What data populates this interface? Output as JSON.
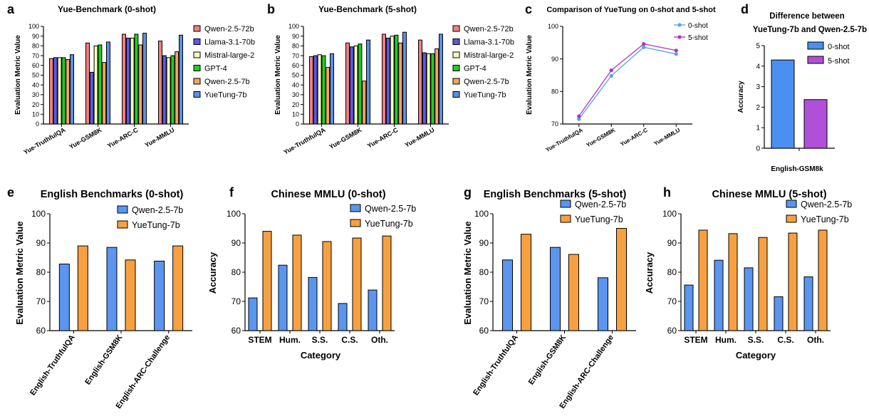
{
  "chart_data": [
    {
      "id": "a",
      "type": "bar",
      "panel_label": "a",
      "title": "Yue-Benchmark (0-shot)",
      "ylabel": "Evaluation Metric Value",
      "xlabel": "",
      "ylim": [
        0,
        100
      ],
      "yticks": [
        0,
        10,
        20,
        30,
        40,
        50,
        60,
        70,
        80,
        90,
        100
      ],
      "categories": [
        "Yue-TruthfulQA",
        "Yue-GSM8K",
        "Yue-ARC-C",
        "Yue-MMLU"
      ],
      "series": [
        {
          "name": "Qwen-2.5-72b",
          "color": "#f08080",
          "values": [
            67,
            83,
            92,
            85
          ]
        },
        {
          "name": "Llama-3.1-70b",
          "color": "#5a5ae6",
          "values": [
            68,
            53,
            88,
            70
          ]
        },
        {
          "name": "Mistral-large-2",
          "color": "#f8f8c0",
          "values": [
            68,
            80,
            88,
            68
          ]
        },
        {
          "name": "GPT-4",
          "color": "#22cc22",
          "values": [
            68,
            81,
            92,
            70
          ]
        },
        {
          "name": "Qwen-2.5-7b",
          "color": "#f4a460",
          "values": [
            66,
            63,
            81,
            74
          ]
        },
        {
          "name": "YueTung-7b",
          "color": "#5b8fe8",
          "values": [
            71,
            84,
            93,
            91
          ]
        }
      ]
    },
    {
      "id": "b",
      "type": "bar",
      "panel_label": "b",
      "title": "Yue-Benchmark (5-shot)",
      "ylabel": "Evaluation Metric Value",
      "xlabel": "",
      "ylim": [
        0,
        100
      ],
      "yticks": [
        0,
        10,
        20,
        30,
        40,
        50,
        60,
        70,
        80,
        90,
        100
      ],
      "categories": [
        "Yue-TruthfulQA",
        "Yue-GSM8K",
        "Yue-ARC-C",
        "Yue-MMLU"
      ],
      "series": [
        {
          "name": "Qwen-2.5-72b",
          "color": "#f08080",
          "values": [
            69,
            83,
            92,
            86
          ]
        },
        {
          "name": "Llama-3.1-70b",
          "color": "#5a5ae6",
          "values": [
            70,
            79,
            88,
            73
          ]
        },
        {
          "name": "Mistral-large-2",
          "color": "#f8f8c0",
          "values": [
            71,
            80,
            90,
            72
          ]
        },
        {
          "name": "GPT-4",
          "color": "#22cc22",
          "values": [
            70,
            82,
            91,
            72
          ]
        },
        {
          "name": "Qwen-2.5-7b",
          "color": "#f4a460",
          "values": [
            58,
            44,
            83,
            77
          ]
        },
        {
          "name": "YueTung-7b",
          "color": "#5b8fe8",
          "values": [
            72,
            86,
            94,
            92
          ]
        }
      ]
    },
    {
      "id": "c",
      "type": "line",
      "panel_label": "c",
      "title": "Comparison of  YueTung on 0-shot and 5-shot",
      "ylabel": "Evaluation Metric Value",
      "xlabel": "",
      "ylim": [
        70,
        100
      ],
      "yticks": [
        70,
        80,
        90,
        100
      ],
      "categories": [
        "Yue-TruthfulQA",
        "Yue-GSM8K",
        "Yue-ARC-C",
        "Yue-MMLU"
      ],
      "series": [
        {
          "name": "0-shot",
          "color": "#5aa0e6",
          "values": [
            71.5,
            84.8,
            93.6,
            91.5
          ]
        },
        {
          "name": "5-shot",
          "color": "#b030c8",
          "values": [
            72.4,
            86.5,
            94.6,
            92.6
          ]
        }
      ]
    },
    {
      "id": "d",
      "type": "bar",
      "panel_label": "d",
      "title": "Difference between",
      "subtitle": "YueTung-7b and Qwen-2.5-7b",
      "ylabel": "Accuracy",
      "xlabel": "English-GSM8k",
      "ylim": [
        0,
        5
      ],
      "yticks": [
        0,
        1,
        2,
        3,
        4,
        5
      ],
      "categories": [
        ""
      ],
      "series": [
        {
          "name": "0-shot",
          "color": "#4a90f0",
          "values": [
            4.3
          ]
        },
        {
          "name": "5-shot",
          "color": "#b050d8",
          "values": [
            2.37
          ]
        }
      ]
    },
    {
      "id": "e",
      "type": "bar",
      "panel_label": "e",
      "title": "English Benchmarks (0-shot)",
      "ylabel": "Evaluation Metric Value",
      "xlabel": "",
      "ylim": [
        60,
        100
      ],
      "yticks": [
        60,
        70,
        80,
        90,
        100
      ],
      "categories": [
        "English-TruthfulQA",
        "English-GSM8K",
        "English-ARC-Challenge"
      ],
      "series": [
        {
          "name": "Qwen-2.5-7b",
          "color": "#5a96f0",
          "values": [
            82.8,
            88.5,
            83.8
          ]
        },
        {
          "name": "YueTung-7b",
          "color": "#f8a040",
          "values": [
            89,
            84.2,
            89
          ]
        }
      ]
    },
    {
      "id": "f",
      "type": "bar",
      "panel_label": "f",
      "title": "Chinese MMLU (0-shot)",
      "ylabel": "Accuracy",
      "xlabel": "Category",
      "ylim": [
        60,
        100
      ],
      "yticks": [
        60,
        70,
        80,
        90,
        100
      ],
      "categories": [
        "STEM",
        "Hum.",
        "S.S.",
        "C.S.",
        "Oth."
      ],
      "series": [
        {
          "name": "Qwen-2.5-7b",
          "color": "#5a96f0",
          "values": [
            71.2,
            82.4,
            78.2,
            69.3,
            73.9
          ]
        },
        {
          "name": "YueTung-7b",
          "color": "#f8a040",
          "values": [
            94,
            92.7,
            90.5,
            91.7,
            92.4
          ]
        }
      ]
    },
    {
      "id": "g",
      "type": "bar",
      "panel_label": "g",
      "title": "English Benchmarks (5-shot)",
      "ylabel": "Evaluation Metric Value",
      "xlabel": "",
      "ylim": [
        60,
        100
      ],
      "yticks": [
        60,
        70,
        80,
        90,
        100
      ],
      "categories": [
        "English-TruthfulQA",
        "English-GSM8K",
        "English-ARC-Challenge"
      ],
      "series": [
        {
          "name": "Qwen-2.5-7b",
          "color": "#5a96f0",
          "values": [
            84.2,
            88.5,
            78.1
          ]
        },
        {
          "name": "YueTung-7b",
          "color": "#f8a040",
          "values": [
            93,
            86.1,
            95
          ]
        }
      ]
    },
    {
      "id": "h",
      "type": "bar",
      "panel_label": "h",
      "title": "Chinese MMLU (5-shot)",
      "ylabel": "Accuracy",
      "xlabel": "Category",
      "ylim": [
        60,
        100
      ],
      "yticks": [
        60,
        70,
        80,
        90,
        100
      ],
      "categories": [
        "STEM",
        "Hum.",
        "S.S.",
        "C.S.",
        "Oth."
      ],
      "series": [
        {
          "name": "Qwen-2.5-7b",
          "color": "#5a96f0",
          "values": [
            75.6,
            84.1,
            81.5,
            71.6,
            78.4
          ]
        },
        {
          "name": "YueTung-7b",
          "color": "#f8a040",
          "values": [
            94.4,
            93.2,
            91.9,
            93.4,
            94.4
          ]
        }
      ]
    }
  ]
}
